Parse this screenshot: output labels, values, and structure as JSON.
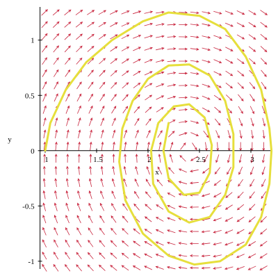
{
  "chart_data": {
    "type": "line",
    "xlabel": "x",
    "ylabel": "y",
    "xlim": [
      0.95,
      3.2
    ],
    "ylim": [
      -1.07,
      1.3
    ],
    "xticks": [
      1,
      1.5,
      2,
      2.5,
      3
    ],
    "yticks": [
      -1,
      -0.5,
      0,
      0.5,
      1
    ],
    "series": [
      {
        "color": "#e6df3c",
        "x": [
          1.0,
          1.05,
          1.2,
          1.4,
          1.65,
          1.95,
          2.2,
          2.5,
          2.75,
          2.95,
          3.1,
          3.18,
          3.2,
          3.18,
          3.1,
          2.95,
          2.7,
          2.45,
          2.2,
          1.95,
          1.78,
          1.72,
          1.75,
          1.85,
          2.0,
          2.2,
          2.4,
          2.6,
          2.75,
          2.83,
          2.83,
          2.75,
          2.6,
          2.4,
          2.2,
          2.05,
          2.03,
          2.1,
          2.25,
          2.4,
          2.55,
          2.62,
          2.6,
          2.5,
          2.35,
          2.2,
          2.15,
          2.2
        ],
        "values": [
          0,
          0.25,
          0.55,
          0.8,
          1.0,
          1.17,
          1.25,
          1.22,
          1.1,
          0.85,
          0.55,
          0.2,
          0,
          -0.3,
          -0.6,
          -0.85,
          -1.0,
          -1.03,
          -0.95,
          -0.75,
          -0.45,
          -0.1,
          0.2,
          0.45,
          0.65,
          0.77,
          0.78,
          0.68,
          0.45,
          0.15,
          -0.15,
          -0.4,
          -0.6,
          -0.65,
          -0.55,
          -0.3,
          0,
          0.25,
          0.4,
          0.42,
          0.3,
          0.05,
          -0.2,
          -0.38,
          -0.4,
          -0.25,
          0,
          0.25
        ]
      }
    ]
  }
}
